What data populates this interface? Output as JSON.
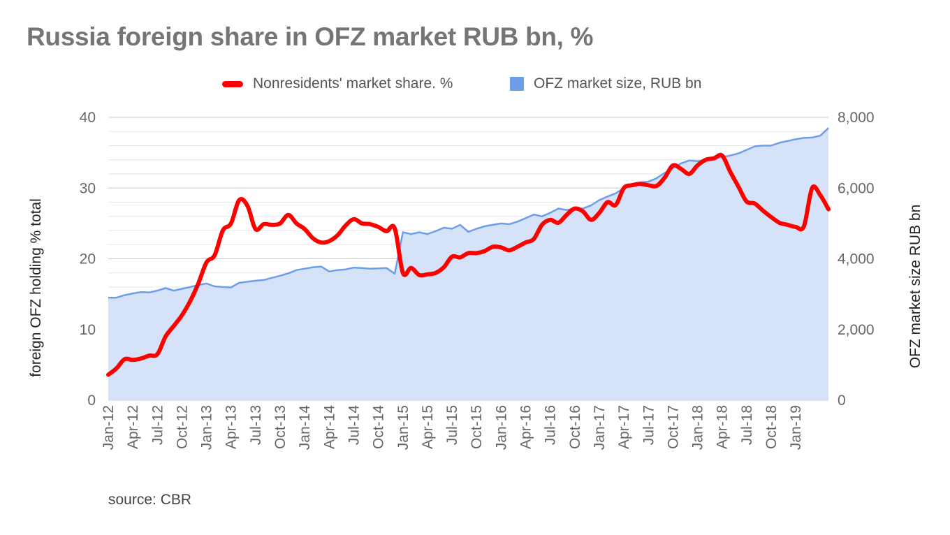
{
  "chart_data": {
    "type": "line",
    "title": "Russia foreign share in OFZ market RUB bn, %",
    "y_left_label": "foreign OFZ holding % total",
    "y_right_label": "OFZ market size RUB bn",
    "y_left_range": [
      0,
      40
    ],
    "y_left_ticks": [
      "0",
      "10",
      "20",
      "30",
      "40"
    ],
    "y_right_range": [
      0,
      8000
    ],
    "y_right_ticks": [
      "0",
      "2,000",
      "4,000",
      "6,000",
      "8,000"
    ],
    "x_tick_labels": [
      "Jan-12",
      "Apr-12",
      "Jul-12",
      "Oct-12",
      "Jan-13",
      "Apr-13",
      "Jul-13",
      "Oct-13",
      "Jan-14",
      "Apr-14",
      "Jul-14",
      "Oct-14",
      "Jan-15",
      "Apr-15",
      "Jul-15",
      "Oct-15",
      "Jan-16",
      "Apr-16",
      "Jul-16",
      "Oct-16",
      "Jan-17",
      "Apr-17",
      "Jul-17",
      "Oct-17",
      "Jan-18",
      "Apr-18",
      "Jul-18",
      "Oct-18",
      "Jan-19"
    ],
    "x_start": "2012-01",
    "x_end": "2019-05",
    "grid": true,
    "legend_position": "top",
    "source": "source: CBR",
    "series": [
      {
        "name": "Nonresidents' market share. %",
        "kind": "line",
        "axis": "left",
        "color": "#ff0000",
        "points": [
          [
            "2012-01",
            3.6
          ],
          [
            "2012-02",
            4.5
          ],
          [
            "2012-03",
            5.8
          ],
          [
            "2012-04",
            5.7
          ],
          [
            "2012-05",
            5.9
          ],
          [
            "2012-06",
            6.3
          ],
          [
            "2012-07",
            6.5
          ],
          [
            "2012-08",
            9.0
          ],
          [
            "2012-09",
            10.5
          ],
          [
            "2012-10",
            12.0
          ],
          [
            "2012-11",
            14.0
          ],
          [
            "2012-12",
            16.5
          ],
          [
            "2013-01",
            19.5
          ],
          [
            "2013-02",
            20.5
          ],
          [
            "2013-03",
            24.0
          ],
          [
            "2013-04",
            25.0
          ],
          [
            "2013-05",
            28.3
          ],
          [
            "2013-06",
            27.5
          ],
          [
            "2013-07",
            24.2
          ],
          [
            "2013-08",
            24.9
          ],
          [
            "2013-09",
            24.8
          ],
          [
            "2013-10",
            25.0
          ],
          [
            "2013-11",
            26.2
          ],
          [
            "2013-12",
            25.0
          ],
          [
            "2014-01",
            24.2
          ],
          [
            "2014-02",
            22.9
          ],
          [
            "2014-03",
            22.3
          ],
          [
            "2014-04",
            22.5
          ],
          [
            "2014-05",
            23.3
          ],
          [
            "2014-06",
            24.7
          ],
          [
            "2014-07",
            25.6
          ],
          [
            "2014-08",
            25.0
          ],
          [
            "2014-09",
            24.9
          ],
          [
            "2014-10",
            24.5
          ],
          [
            "2014-11",
            23.9
          ],
          [
            "2014-12",
            24.3
          ],
          [
            "2015-01",
            18.0
          ],
          [
            "2015-02",
            18.7
          ],
          [
            "2015-03",
            17.7
          ],
          [
            "2015-04",
            17.8
          ],
          [
            "2015-05",
            18.0
          ],
          [
            "2015-06",
            18.8
          ],
          [
            "2015-07",
            20.3
          ],
          [
            "2015-08",
            20.2
          ],
          [
            "2015-09",
            20.8
          ],
          [
            "2015-10",
            20.8
          ],
          [
            "2015-11",
            21.1
          ],
          [
            "2015-12",
            21.7
          ],
          [
            "2016-01",
            21.6
          ],
          [
            "2016-02",
            21.2
          ],
          [
            "2016-03",
            21.7
          ],
          [
            "2016-04",
            22.3
          ],
          [
            "2016-05",
            22.8
          ],
          [
            "2016-06",
            24.8
          ],
          [
            "2016-07",
            25.5
          ],
          [
            "2016-08",
            25.1
          ],
          [
            "2016-09",
            26.2
          ],
          [
            "2016-10",
            27.1
          ],
          [
            "2016-11",
            26.7
          ],
          [
            "2016-12",
            25.5
          ],
          [
            "2017-01",
            26.5
          ],
          [
            "2017-02",
            28.0
          ],
          [
            "2017-03",
            27.6
          ],
          [
            "2017-04",
            30.0
          ],
          [
            "2017-05",
            30.4
          ],
          [
            "2017-06",
            30.6
          ],
          [
            "2017-07",
            30.4
          ],
          [
            "2017-08",
            30.3
          ],
          [
            "2017-09",
            31.5
          ],
          [
            "2017-10",
            33.2
          ],
          [
            "2017-11",
            32.7
          ],
          [
            "2017-12",
            32.0
          ],
          [
            "2018-01",
            33.2
          ],
          [
            "2018-02",
            34.0
          ],
          [
            "2018-03",
            34.2
          ],
          [
            "2018-04",
            34.6
          ],
          [
            "2018-05",
            32.3
          ],
          [
            "2018-06",
            30.2
          ],
          [
            "2018-07",
            28.1
          ],
          [
            "2018-08",
            27.8
          ],
          [
            "2018-09",
            26.8
          ],
          [
            "2018-10",
            25.9
          ],
          [
            "2018-11",
            25.1
          ],
          [
            "2018-12",
            24.8
          ],
          [
            "2019-01",
            24.5
          ],
          [
            "2019-02",
            24.6
          ],
          [
            "2019-03",
            30.0
          ],
          [
            "2019-04",
            29.0
          ],
          [
            "2019-05",
            27.0
          ]
        ]
      },
      {
        "name": "OFZ market size, RUB bn",
        "kind": "area",
        "axis": "right",
        "color": "#6d9eeb",
        "fill": "#d5e2f8",
        "points": [
          [
            "2012-01",
            2900
          ],
          [
            "2012-02",
            2900
          ],
          [
            "2012-03",
            2970
          ],
          [
            "2012-04",
            3020
          ],
          [
            "2012-05",
            3060
          ],
          [
            "2012-06",
            3050
          ],
          [
            "2012-07",
            3100
          ],
          [
            "2012-08",
            3170
          ],
          [
            "2012-09",
            3100
          ],
          [
            "2012-10",
            3150
          ],
          [
            "2012-11",
            3200
          ],
          [
            "2012-12",
            3260
          ],
          [
            "2013-01",
            3300
          ],
          [
            "2013-02",
            3220
          ],
          [
            "2013-03",
            3200
          ],
          [
            "2013-04",
            3190
          ],
          [
            "2013-05",
            3320
          ],
          [
            "2013-06",
            3350
          ],
          [
            "2013-07",
            3380
          ],
          [
            "2013-08",
            3400
          ],
          [
            "2013-09",
            3460
          ],
          [
            "2013-10",
            3520
          ],
          [
            "2013-11",
            3590
          ],
          [
            "2013-12",
            3680
          ],
          [
            "2014-01",
            3720
          ],
          [
            "2014-02",
            3760
          ],
          [
            "2014-03",
            3780
          ],
          [
            "2014-04",
            3640
          ],
          [
            "2014-05",
            3680
          ],
          [
            "2014-06",
            3700
          ],
          [
            "2014-07",
            3750
          ],
          [
            "2014-08",
            3740
          ],
          [
            "2014-09",
            3720
          ],
          [
            "2014-10",
            3730
          ],
          [
            "2014-11",
            3740
          ],
          [
            "2014-12",
            3580
          ],
          [
            "2015-01",
            4750
          ],
          [
            "2015-02",
            4700
          ],
          [
            "2015-03",
            4750
          ],
          [
            "2015-04",
            4700
          ],
          [
            "2015-05",
            4780
          ],
          [
            "2015-06",
            4880
          ],
          [
            "2015-07",
            4850
          ],
          [
            "2015-08",
            4960
          ],
          [
            "2015-09",
            4760
          ],
          [
            "2015-10",
            4850
          ],
          [
            "2015-11",
            4920
          ],
          [
            "2015-12",
            4960
          ],
          [
            "2016-01",
            5000
          ],
          [
            "2016-02",
            4980
          ],
          [
            "2016-03",
            5050
          ],
          [
            "2016-04",
            5150
          ],
          [
            "2016-05",
            5250
          ],
          [
            "2016-06",
            5200
          ],
          [
            "2016-07",
            5300
          ],
          [
            "2016-08",
            5420
          ],
          [
            "2016-09",
            5380
          ],
          [
            "2016-10",
            5420
          ],
          [
            "2016-11",
            5420
          ],
          [
            "2016-12",
            5510
          ],
          [
            "2017-01",
            5660
          ],
          [
            "2017-02",
            5760
          ],
          [
            "2017-03",
            5850
          ],
          [
            "2017-04",
            6000
          ],
          [
            "2017-05",
            6060
          ],
          [
            "2017-06",
            6160
          ],
          [
            "2017-07",
            6180
          ],
          [
            "2017-08",
            6280
          ],
          [
            "2017-09",
            6430
          ],
          [
            "2017-10",
            6560
          ],
          [
            "2017-11",
            6700
          ],
          [
            "2017-12",
            6780
          ],
          [
            "2018-01",
            6760
          ],
          [
            "2018-02",
            6800
          ],
          [
            "2018-03",
            6830
          ],
          [
            "2018-04",
            6880
          ],
          [
            "2018-05",
            6920
          ],
          [
            "2018-06",
            6980
          ],
          [
            "2018-07",
            7080
          ],
          [
            "2018-08",
            7180
          ],
          [
            "2018-09",
            7200
          ],
          [
            "2018-10",
            7200
          ],
          [
            "2018-11",
            7280
          ],
          [
            "2018-12",
            7330
          ],
          [
            "2019-01",
            7380
          ],
          [
            "2019-02",
            7420
          ],
          [
            "2019-03",
            7430
          ],
          [
            "2019-04",
            7480
          ],
          [
            "2019-05",
            7700
          ]
        ]
      }
    ]
  }
}
